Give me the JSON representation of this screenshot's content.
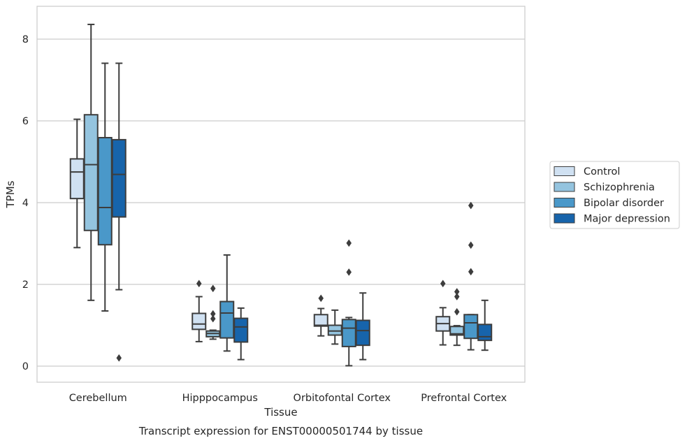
{
  "chart_data": {
    "type": "box",
    "xlabel": "Tissue",
    "ylabel": "TPMs",
    "caption": "Transcript expression for ENST00000501744 by tissue",
    "ylim": [
      -0.4,
      8.8
    ],
    "yticks": [
      0,
      2,
      4,
      6,
      8
    ],
    "grid": true,
    "legend_position": "right",
    "categories": [
      "Cerebellum",
      "Hipppocampus",
      "Orbitofontal Cortex",
      "Prefrontal Cortex"
    ],
    "series": [
      {
        "name": "Control",
        "color": "#d0e1f2",
        "boxes": [
          {
            "whislo": 2.9,
            "q1": 4.1,
            "med": 4.75,
            "q3": 5.07,
            "whishi": 6.04,
            "fliers": []
          },
          {
            "whislo": 0.6,
            "q1": 0.9,
            "med": 1.03,
            "q3": 1.29,
            "whishi": 1.7,
            "fliers": [
              2.02
            ]
          },
          {
            "whislo": 0.74,
            "q1": 0.98,
            "med": 1.0,
            "q3": 1.26,
            "whishi": 1.41,
            "fliers": [
              1.66
            ]
          },
          {
            "whislo": 0.52,
            "q1": 0.86,
            "med": 1.04,
            "q3": 1.21,
            "whishi": 1.43,
            "fliers": [
              2.02
            ]
          }
        ]
      },
      {
        "name": "Schizophrenia",
        "color": "#94c4df",
        "boxes": [
          {
            "whislo": 1.61,
            "q1": 3.32,
            "med": 4.93,
            "q3": 6.15,
            "whishi": 8.36,
            "fliers": []
          },
          {
            "whislo": 0.66,
            "q1": 0.72,
            "med": 0.8,
            "q3": 0.86,
            "whishi": 0.88,
            "fliers": [
              1.16,
              1.28,
              1.9
            ]
          },
          {
            "whislo": 0.54,
            "q1": 0.76,
            "med": 0.86,
            "q3": 1.0,
            "whishi": 1.37,
            "fliers": []
          },
          {
            "whislo": 0.51,
            "q1": 0.76,
            "med": 0.79,
            "q3": 0.97,
            "whishi": 0.99,
            "fliers": [
              1.33,
              1.7,
              1.82
            ]
          }
        ]
      },
      {
        "name": "Bipolar disorder",
        "color": "#4a98c9",
        "boxes": [
          {
            "whislo": 1.35,
            "q1": 2.97,
            "med": 3.88,
            "q3": 5.59,
            "whishi": 7.41,
            "fliers": []
          },
          {
            "whislo": 0.37,
            "q1": 0.69,
            "med": 1.3,
            "q3": 1.58,
            "whishi": 2.72,
            "fliers": []
          },
          {
            "whislo": 0.01,
            "q1": 0.48,
            "med": 0.93,
            "q3": 1.14,
            "whishi": 1.19,
            "fliers": [
              2.3,
              3.01
            ]
          },
          {
            "whislo": 0.4,
            "q1": 0.68,
            "med": 1.06,
            "q3": 1.26,
            "whishi": 1.26,
            "fliers": [
              2.31,
              2.96,
              3.93
            ]
          }
        ]
      },
      {
        "name": "Major depression",
        "color": "#1764ab",
        "boxes": [
          {
            "whislo": 1.87,
            "q1": 3.65,
            "med": 4.69,
            "q3": 5.54,
            "whishi": 7.41,
            "fliers": [
              0.2
            ]
          },
          {
            "whislo": 0.16,
            "q1": 0.59,
            "med": 0.96,
            "q3": 1.17,
            "whishi": 1.42,
            "fliers": []
          },
          {
            "whislo": 0.16,
            "q1": 0.51,
            "med": 0.87,
            "q3": 1.12,
            "whishi": 1.79,
            "fliers": []
          },
          {
            "whislo": 0.39,
            "q1": 0.63,
            "med": 0.72,
            "q3": 1.02,
            "whishi": 1.61,
            "fliers": []
          }
        ]
      }
    ]
  }
}
